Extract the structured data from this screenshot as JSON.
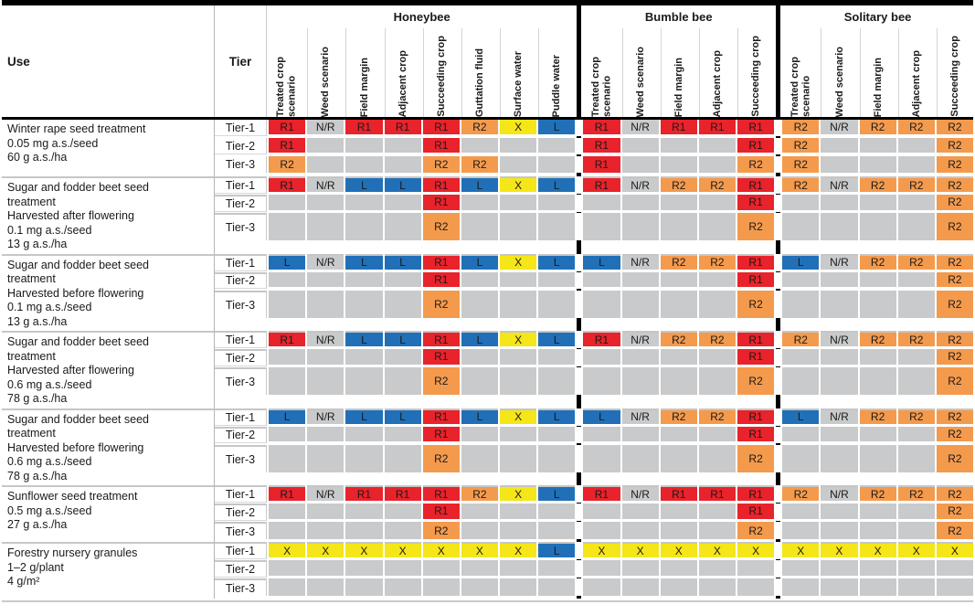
{
  "columns": {
    "use_header": "Use",
    "tier_header": "Tier",
    "groups": [
      {
        "name": "Honeybee",
        "columns": [
          "Treated crop scenario",
          "Weed scenario",
          "Field margin",
          "Adjacent crop",
          "Succeeding crop",
          "Guttation fluid",
          "Surface water",
          "Puddle water"
        ]
      },
      {
        "name": "Bumble bee",
        "columns": [
          "Treated crop scenario",
          "Weed scenario",
          "Field margin",
          "Adjacent crop",
          "Succeeding crop"
        ]
      },
      {
        "name": "Solitary bee",
        "columns": [
          "Treated crop scenario",
          "Weed scenario",
          "Field margin",
          "Adjacent crop",
          "Succeeding crop"
        ]
      }
    ]
  },
  "legend_colors": {
    "R1": "#e8232b",
    "R2": "#f49a4d",
    "N/R": "#c9cacb",
    "L": "#2170b7",
    "X": "#f4e618",
    "blank": "#c9cacb"
  },
  "rows": [
    {
      "use_lines": [
        "Winter rape seed treatment",
        "0.05 mg a.s./seed",
        "60 g a.s./ha"
      ],
      "tiers": [
        {
          "label": "Tier-1",
          "honeybee": [
            "R1",
            "N/R",
            "R1",
            "R1",
            "R1",
            "R2",
            "X",
            "L"
          ],
          "bumble": [
            "R1",
            "N/R",
            "R1",
            "R1",
            "R1"
          ],
          "solitary": [
            "R2",
            "N/R",
            "R2",
            "R2",
            "R2"
          ]
        },
        {
          "label": "Tier-2",
          "honeybee": [
            "R1",
            "",
            "",
            "",
            "R1",
            "",
            "",
            ""
          ],
          "bumble": [
            "R1",
            "",
            "",
            "",
            "R1"
          ],
          "solitary": [
            "R2",
            "",
            "",
            "",
            "R2"
          ]
        },
        {
          "label": "Tier-3",
          "honeybee": [
            "R2",
            "",
            "",
            "",
            "R2",
            "R2",
            "",
            ""
          ],
          "bumble": [
            "R1",
            "",
            "",
            "",
            "R2"
          ],
          "solitary": [
            "R2",
            "",
            "",
            "",
            "R2"
          ]
        }
      ]
    },
    {
      "use_lines": [
        "Sugar and fodder beet seed",
        "treatment",
        "Harvested after flowering",
        "0.1 mg a.s./seed",
        "13 g a.s./ha"
      ],
      "tiers": [
        {
          "label": "Tier-1",
          "honeybee": [
            "R1",
            "N/R",
            "L",
            "L",
            "R1",
            "L",
            "X",
            "L"
          ],
          "bumble": [
            "R1",
            "N/R",
            "R2",
            "R2",
            "R1"
          ],
          "solitary": [
            "R2",
            "N/R",
            "R2",
            "R2",
            "R2"
          ]
        },
        {
          "label": "Tier-2",
          "honeybee": [
            "",
            "",
            "",
            "",
            "R1",
            "",
            "",
            ""
          ],
          "bumble": [
            "",
            "",
            "",
            "",
            "R1"
          ],
          "solitary": [
            "",
            "",
            "",
            "",
            "R2"
          ]
        },
        {
          "label": "Tier-3",
          "honeybee": [
            "",
            "",
            "",
            "",
            "R2",
            "",
            "",
            ""
          ],
          "bumble": [
            "",
            "",
            "",
            "",
            "R2"
          ],
          "solitary": [
            "",
            "",
            "",
            "",
            "R2"
          ]
        }
      ]
    },
    {
      "use_lines": [
        "Sugar and fodder beet seed",
        "treatment",
        "Harvested before flowering",
        "0.1 mg a.s./seed",
        "13 g a.s./ha"
      ],
      "tiers": [
        {
          "label": "Tier-1",
          "honeybee": [
            "L",
            "N/R",
            "L",
            "L",
            "R1",
            "L",
            "X",
            "L"
          ],
          "bumble": [
            "L",
            "N/R",
            "R2",
            "R2",
            "R1"
          ],
          "solitary": [
            "L",
            "N/R",
            "R2",
            "R2",
            "R2"
          ]
        },
        {
          "label": "Tier-2",
          "honeybee": [
            "",
            "",
            "",
            "",
            "R1",
            "",
            "",
            ""
          ],
          "bumble": [
            "",
            "",
            "",
            "",
            "R1"
          ],
          "solitary": [
            "",
            "",
            "",
            "",
            "R2"
          ]
        },
        {
          "label": "Tier-3",
          "honeybee": [
            "",
            "",
            "",
            "",
            "R2",
            "",
            "",
            ""
          ],
          "bumble": [
            "",
            "",
            "",
            "",
            "R2"
          ],
          "solitary": [
            "",
            "",
            "",
            "",
            "R2"
          ]
        }
      ]
    },
    {
      "use_lines": [
        "Sugar and fodder beet seed",
        "treatment",
        "Harvested after flowering",
        "0.6 mg a.s./seed",
        "78 g a.s./ha"
      ],
      "tiers": [
        {
          "label": "Tier-1",
          "honeybee": [
            "R1",
            "N/R",
            "L",
            "L",
            "R1",
            "L",
            "X",
            "L"
          ],
          "bumble": [
            "R1",
            "N/R",
            "R2",
            "R2",
            "R1"
          ],
          "solitary": [
            "R2",
            "N/R",
            "R2",
            "R2",
            "R2"
          ]
        },
        {
          "label": "Tier-2",
          "honeybee": [
            "",
            "",
            "",
            "",
            "R1",
            "",
            "",
            ""
          ],
          "bumble": [
            "",
            "",
            "",
            "",
            "R1"
          ],
          "solitary": [
            "",
            "",
            "",
            "",
            "R2"
          ]
        },
        {
          "label": "Tier-3",
          "honeybee": [
            "",
            "",
            "",
            "",
            "R2",
            "",
            "",
            ""
          ],
          "bumble": [
            "",
            "",
            "",
            "",
            "R2"
          ],
          "solitary": [
            "",
            "",
            "",
            "",
            "R2"
          ]
        }
      ]
    },
    {
      "use_lines": [
        "Sugar and fodder beet seed",
        "treatment",
        "Harvested before flowering",
        "0.6 mg a.s./seed",
        "78 g a.s./ha"
      ],
      "tiers": [
        {
          "label": "Tier-1",
          "honeybee": [
            "L",
            "N/R",
            "L",
            "L",
            "R1",
            "L",
            "X",
            "L"
          ],
          "bumble": [
            "L",
            "N/R",
            "R2",
            "R2",
            "R1"
          ],
          "solitary": [
            "L",
            "N/R",
            "R2",
            "R2",
            "R2"
          ]
        },
        {
          "label": "Tier-2",
          "honeybee": [
            "",
            "",
            "",
            "",
            "R1",
            "",
            "",
            ""
          ],
          "bumble": [
            "",
            "",
            "",
            "",
            "R1"
          ],
          "solitary": [
            "",
            "",
            "",
            "",
            "R2"
          ]
        },
        {
          "label": "Tier-3",
          "honeybee": [
            "",
            "",
            "",
            "",
            "R2",
            "",
            "",
            ""
          ],
          "bumble": [
            "",
            "",
            "",
            "",
            "R2"
          ],
          "solitary": [
            "",
            "",
            "",
            "",
            "R2"
          ]
        }
      ]
    },
    {
      "use_lines": [
        "Sunflower seed treatment",
        "0.5 mg a.s./seed",
        "27 g a.s./ha"
      ],
      "tiers": [
        {
          "label": "Tier-1",
          "honeybee": [
            "R1",
            "N/R",
            "R1",
            "R1",
            "R1",
            "R2",
            "X",
            "L"
          ],
          "bumble": [
            "R1",
            "N/R",
            "R1",
            "R1",
            "R1"
          ],
          "solitary": [
            "R2",
            "N/R",
            "R2",
            "R2",
            "R2"
          ]
        },
        {
          "label": "Tier-2",
          "honeybee": [
            "",
            "",
            "",
            "",
            "R1",
            "",
            "",
            ""
          ],
          "bumble": [
            "",
            "",
            "",
            "",
            "R1"
          ],
          "solitary": [
            "",
            "",
            "",
            "",
            "R2"
          ]
        },
        {
          "label": "Tier-3",
          "honeybee": [
            "",
            "",
            "",
            "",
            "R2",
            "",
            "",
            ""
          ],
          "bumble": [
            "",
            "",
            "",
            "",
            "R2"
          ],
          "solitary": [
            "",
            "",
            "",
            "",
            "R2"
          ]
        }
      ]
    },
    {
      "use_lines": [
        "Forestry nursery granules",
        "1–2 g/plant",
        "4 g/m²"
      ],
      "tiers": [
        {
          "label": "Tier-1",
          "honeybee": [
            "X",
            "X",
            "X",
            "X",
            "X",
            "X",
            "X",
            "L"
          ],
          "bumble": [
            "X",
            "X",
            "X",
            "X",
            "X"
          ],
          "solitary": [
            "X",
            "X",
            "X",
            "X",
            "X"
          ]
        },
        {
          "label": "Tier-2",
          "honeybee": [
            "",
            "",
            "",
            "",
            "",
            "",
            "",
            ""
          ],
          "bumble": [
            "",
            "",
            "",
            "",
            ""
          ],
          "solitary": [
            "",
            "",
            "",
            "",
            ""
          ]
        },
        {
          "label": "Tier-3",
          "honeybee": [
            "",
            "",
            "",
            "",
            "",
            "",
            "",
            ""
          ],
          "bumble": [
            "",
            "",
            "",
            "",
            ""
          ],
          "solitary": [
            "",
            "",
            "",
            "",
            ""
          ]
        }
      ]
    }
  ]
}
